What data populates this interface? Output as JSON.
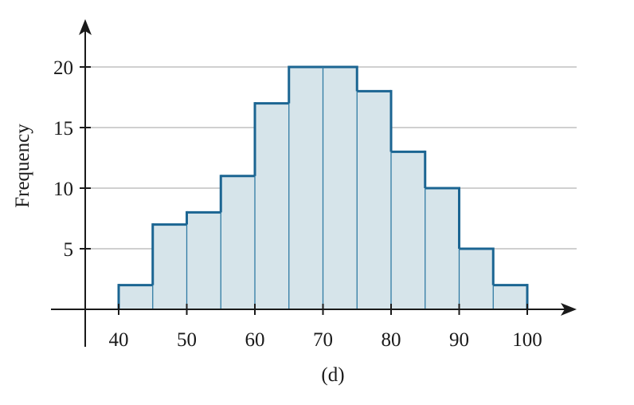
{
  "chart_data": {
    "type": "bar",
    "subtype": "histogram",
    "bin_edges": [
      40,
      45,
      50,
      55,
      60,
      65,
      70,
      75,
      80,
      85,
      90,
      95,
      100
    ],
    "values": [
      2,
      7,
      8,
      11,
      17,
      20,
      20,
      18,
      13,
      10,
      5,
      2
    ],
    "xlabel": "",
    "ylabel": "Frequency",
    "caption": "(d)",
    "xlim": [
      35,
      105
    ],
    "ylim": [
      0,
      22
    ],
    "x_ticks": [
      40,
      50,
      60,
      70,
      80,
      90,
      100
    ],
    "y_ticks": [
      5,
      10,
      15,
      20
    ],
    "grid": "horizontal",
    "colors": {
      "bar_fill": "#d6e4ea",
      "bar_edge_thick": "#1b6592",
      "bar_edge_thin": "#2f7aa3",
      "grid": "#b5b5b5",
      "axis": "#1a1a1a"
    }
  }
}
